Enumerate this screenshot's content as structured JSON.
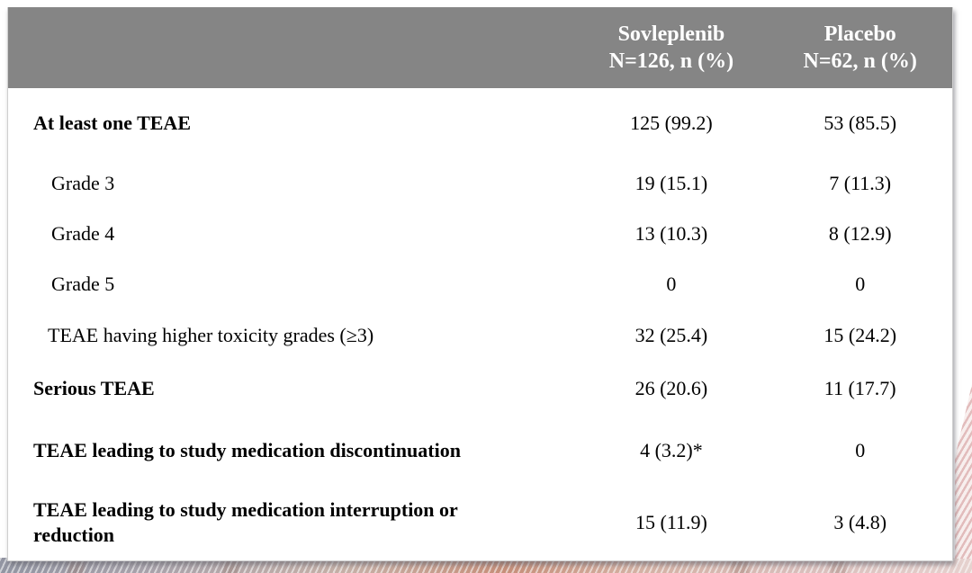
{
  "table": {
    "header": {
      "col1": {
        "line1": "Sovleplenib",
        "line2": "N=126, n (%)"
      },
      "col2": {
        "line1": "Placebo",
        "line2": "N=62, n (%)"
      }
    },
    "rows": [
      {
        "label": "At least one TEAE",
        "sovleplenib": "125 (99.2)",
        "placebo": "53 (85.5)"
      },
      {
        "label": "Grade 3",
        "sovleplenib": "19 (15.1)",
        "placebo": "7 (11.3)"
      },
      {
        "label": "Grade 4",
        "sovleplenib": "13 (10.3)",
        "placebo": "8 (12.9)"
      },
      {
        "label": "Grade 5",
        "sovleplenib": "0",
        "placebo": "0"
      },
      {
        "label": "TEAE having higher toxicity grades (≥3)",
        "sovleplenib": "32 (25.4)",
        "placebo": "15 (24.2)"
      },
      {
        "label": "Serious TEAE",
        "sovleplenib": "26 (20.6)",
        "placebo": "11 (17.7)"
      },
      {
        "label": "TEAE leading to study medication discontinuation",
        "sovleplenib": "4 (3.2)*",
        "placebo": "0"
      },
      {
        "label": "TEAE leading to study medication interruption or reduction",
        "sovleplenib": "15 (11.9)",
        "placebo": "3 (4.8)"
      }
    ]
  },
  "colors": {
    "header_bg": "#858585",
    "header_text": "#ffffff",
    "body_text": "#000000",
    "accent_pink": "#e2bcbc",
    "accent_gray": "#9295a2"
  }
}
